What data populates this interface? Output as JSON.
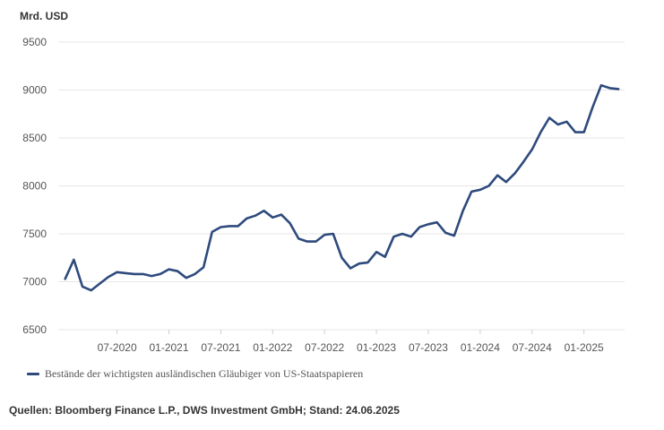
{
  "chart_data": {
    "type": "line",
    "title": "",
    "ylabel": "Mrd. USD",
    "xlabel": "",
    "ylim": [
      6500,
      9500
    ],
    "y_ticks": [
      6500,
      7000,
      7500,
      8000,
      8500,
      9000,
      9500
    ],
    "x_tick_labels": [
      "07-2020",
      "01-2021",
      "07-2021",
      "01-2022",
      "07-2022",
      "01-2023",
      "07-2023",
      "01-2024",
      "07-2024",
      "01-2025"
    ],
    "grid": true,
    "legend_position": "bottom-left",
    "series": [
      {
        "name": "Bestände der wichtigsten ausländischen Gläubiger von US-Staatspapieren",
        "color": "#2e4a7d",
        "x": [
          "2020-01",
          "2020-02",
          "2020-03",
          "2020-04",
          "2020-05",
          "2020-06",
          "2020-07",
          "2020-08",
          "2020-09",
          "2020-10",
          "2020-11",
          "2020-12",
          "2021-01",
          "2021-02",
          "2021-03",
          "2021-04",
          "2021-05",
          "2021-06",
          "2021-07",
          "2021-08",
          "2021-09",
          "2021-10",
          "2021-11",
          "2021-12",
          "2022-01",
          "2022-02",
          "2022-03",
          "2022-04",
          "2022-05",
          "2022-06",
          "2022-07",
          "2022-08",
          "2022-09",
          "2022-10",
          "2022-11",
          "2022-12",
          "2023-01",
          "2023-02",
          "2023-03",
          "2023-04",
          "2023-05",
          "2023-06",
          "2023-07",
          "2023-08",
          "2023-09",
          "2023-10",
          "2023-11",
          "2023-12",
          "2024-01",
          "2024-02",
          "2024-03",
          "2024-04",
          "2024-05",
          "2024-06",
          "2024-07",
          "2024-08",
          "2024-09",
          "2024-10",
          "2024-11",
          "2024-12",
          "2025-01",
          "2025-02",
          "2025-03",
          "2025-04",
          "2025-05"
        ],
        "y": [
          7030,
          7230,
          6950,
          6910,
          6980,
          7050,
          7100,
          7090,
          7080,
          7080,
          7060,
          7080,
          7130,
          7110,
          7040,
          7080,
          7150,
          7520,
          7570,
          7580,
          7580,
          7660,
          7690,
          7740,
          7670,
          7700,
          7610,
          7450,
          7420,
          7420,
          7490,
          7500,
          7250,
          7140,
          7190,
          7200,
          7310,
          7260,
          7470,
          7500,
          7470,
          7570,
          7600,
          7620,
          7510,
          7480,
          7740,
          7940,
          7960,
          8000,
          8110,
          8040,
          8130,
          8250,
          8380,
          8560,
          8710,
          8640,
          8670,
          8560,
          8560,
          8820,
          9050,
          9020,
          9010
        ]
      }
    ]
  },
  "source_text": "Quellen: Bloomberg Finance L.P., DWS Investment GmbH; Stand: 24.06.2025"
}
